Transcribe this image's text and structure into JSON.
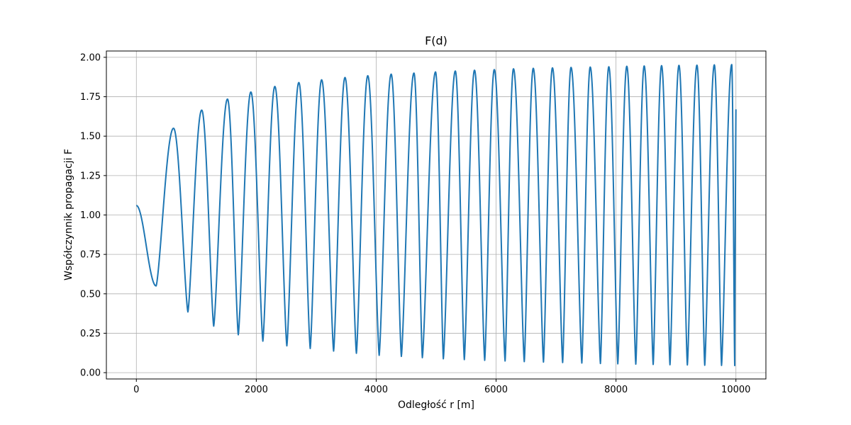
{
  "chart_data": {
    "type": "line",
    "title": "F(d)",
    "xlabel": "Odległość r [m]",
    "ylabel": "Współczynnik propagacji F",
    "xlim": [
      -500,
      10500
    ],
    "ylim": [
      -0.04,
      2.04
    ],
    "xticks": [
      0,
      2000,
      4000,
      6000,
      8000,
      10000
    ],
    "yticks": [
      0.0,
      0.25,
      0.5,
      0.75,
      1.0,
      1.25,
      1.5,
      1.75,
      2.0
    ],
    "xtick_labels": [
      "0",
      "2000",
      "4000",
      "6000",
      "8000",
      "10000"
    ],
    "ytick_labels": [
      "0.00",
      "0.25",
      "0.50",
      "0.75",
      "1.00",
      "1.25",
      "1.50",
      "1.75",
      "2.00"
    ],
    "grid": true,
    "series": [
      {
        "color": "#1f77b4",
        "x_start": 0,
        "x_end": 10000,
        "start_value": 1.06,
        "end_value": 1.67,
        "peaks": [
          {
            "x": 620,
            "y": 1.55
          },
          {
            "x": 1090,
            "y": 1.665
          },
          {
            "x": 1520,
            "y": 1.735
          },
          {
            "x": 1910,
            "y": 1.78
          },
          {
            "x": 2310,
            "y": 1.815
          },
          {
            "x": 2710,
            "y": 1.84
          },
          {
            "x": 3090,
            "y": 1.857
          },
          {
            "x": 3480,
            "y": 1.872
          },
          {
            "x": 3860,
            "y": 1.883
          },
          {
            "x": 4250,
            "y": 1.893
          },
          {
            "x": 4630,
            "y": 1.9
          },
          {
            "x": 4990,
            "y": 1.907
          },
          {
            "x": 5320,
            "y": 1.913
          },
          {
            "x": 5640,
            "y": 1.918
          },
          {
            "x": 5970,
            "y": 1.922
          },
          {
            "x": 6290,
            "y": 1.927
          },
          {
            "x": 6620,
            "y": 1.93
          },
          {
            "x": 6940,
            "y": 1.933
          },
          {
            "x": 7250,
            "y": 1.936
          },
          {
            "x": 7570,
            "y": 1.938
          },
          {
            "x": 7880,
            "y": 1.94
          },
          {
            "x": 8180,
            "y": 1.943
          },
          {
            "x": 8470,
            "y": 1.945
          },
          {
            "x": 8760,
            "y": 1.947
          },
          {
            "x": 9050,
            "y": 1.949
          },
          {
            "x": 9350,
            "y": 1.95
          },
          {
            "x": 9640,
            "y": 1.952
          },
          {
            "x": 9930,
            "y": 1.954
          }
        ],
        "troughs": [
          {
            "x": 330,
            "y": 0.55
          },
          {
            "x": 860,
            "y": 0.385
          },
          {
            "x": 1290,
            "y": 0.295
          },
          {
            "x": 1700,
            "y": 0.24
          },
          {
            "x": 2110,
            "y": 0.2
          },
          {
            "x": 2510,
            "y": 0.17
          },
          {
            "x": 2900,
            "y": 0.153
          },
          {
            "x": 3290,
            "y": 0.137
          },
          {
            "x": 3670,
            "y": 0.123
          },
          {
            "x": 4050,
            "y": 0.11
          },
          {
            "x": 4420,
            "y": 0.103
          },
          {
            "x": 4770,
            "y": 0.095
          },
          {
            "x": 5120,
            "y": 0.088
          },
          {
            "x": 5470,
            "y": 0.083
          },
          {
            "x": 5810,
            "y": 0.078
          },
          {
            "x": 6150,
            "y": 0.074
          },
          {
            "x": 6470,
            "y": 0.07
          },
          {
            "x": 6790,
            "y": 0.067
          },
          {
            "x": 7110,
            "y": 0.064
          },
          {
            "x": 7430,
            "y": 0.061
          },
          {
            "x": 7740,
            "y": 0.058
          },
          {
            "x": 8030,
            "y": 0.056
          },
          {
            "x": 8330,
            "y": 0.054
          },
          {
            "x": 8620,
            "y": 0.052
          },
          {
            "x": 8900,
            "y": 0.05
          },
          {
            "x": 9190,
            "y": 0.049
          },
          {
            "x": 9480,
            "y": 0.047
          },
          {
            "x": 9760,
            "y": 0.046
          },
          {
            "x": 9980,
            "y": 0.045
          }
        ]
      }
    ]
  }
}
